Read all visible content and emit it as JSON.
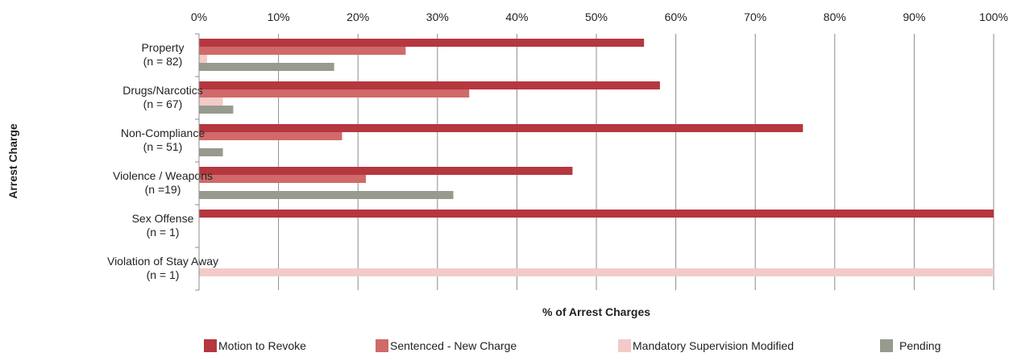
{
  "chart_data": {
    "type": "bar",
    "orientation": "horizontal",
    "categories": [
      [
        "Property",
        "(n = 82)"
      ],
      [
        "Drugs/Narcotics",
        "(n = 67)"
      ],
      [
        "Non-Compliance",
        "(n = 51)"
      ],
      [
        "Violence / Weapons",
        "(n =19)"
      ],
      [
        "Sex Offense",
        "(n = 1)"
      ],
      [
        "Violation of Stay Away",
        "(n = 1)"
      ]
    ],
    "series": [
      {
        "name": "Motion to Revoke",
        "color": "#b5373f",
        "values": [
          56,
          58,
          76,
          47,
          100,
          0
        ]
      },
      {
        "name": "Sentenced - New Charge",
        "color": "#d06a6a",
        "values": [
          26,
          34,
          18,
          21,
          0,
          0
        ]
      },
      {
        "name": "Mandatory Supervision Modified",
        "color": "#f2caca",
        "values": [
          1,
          3,
          0,
          0,
          0,
          100
        ]
      },
      {
        "name": "Pending",
        "color": "#979a8e",
        "values": [
          17,
          4.3,
          3,
          32,
          0,
          0
        ]
      }
    ],
    "xlabel": "% of Arrest Charges",
    "ylabel": "Arrest Charge",
    "xlim": [
      0,
      100
    ],
    "xticks": [
      "0%",
      "10%",
      "20%",
      "30%",
      "40%",
      "50%",
      "60%",
      "70%",
      "80%",
      "90%",
      "100%"
    ],
    "grid": true,
    "legend_position": "bottom"
  }
}
